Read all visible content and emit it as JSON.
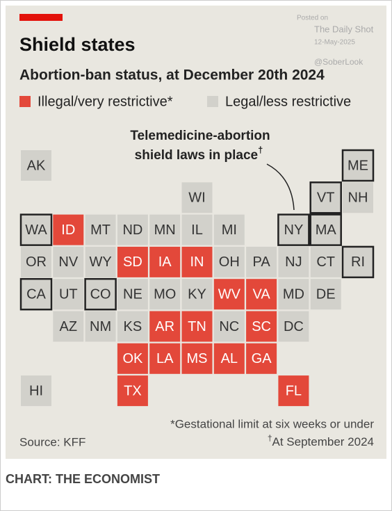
{
  "watermark": {
    "posted": "Posted on",
    "site": "The Daily Shot",
    "date": "12-May-2025",
    "handle": "@SoberLook"
  },
  "title": "Shield states",
  "subtitle": "Abortion-ban status, at December 20th 2024",
  "legend": [
    {
      "label": "Illegal/very restrictive*",
      "color": "#e3483a"
    },
    {
      "label": "Legal/less restrictive",
      "color": "#d2d1cb"
    }
  ],
  "annotation": {
    "lines": [
      "Telemedicine-abortion",
      "shield laws in place"
    ],
    "mark": "†"
  },
  "tiles": [
    "AK",
    "ME",
    "WI",
    "VT",
    "NH",
    "WA",
    "ID",
    "MT",
    "ND",
    "MN",
    "IL",
    "MI",
    "NY",
    "MA",
    "OR",
    "NV",
    "WY",
    "SD",
    "IA",
    "IN",
    "OH",
    "PA",
    "NJ",
    "CT",
    "RI",
    "CA",
    "UT",
    "CO",
    "NE",
    "MO",
    "KY",
    "WV",
    "VA",
    "MD",
    "DE",
    "AZ",
    "NM",
    "KS",
    "AR",
    "TN",
    "NC",
    "SC",
    "DC",
    "OK",
    "LA",
    "MS",
    "AL",
    "GA",
    "HI",
    "TX",
    "FL"
  ],
  "footnotes": [
    {
      "text": "*Gestational limit at six weeks or under"
    },
    {
      "mark": "†",
      "text": "At September 2024"
    }
  ],
  "source": "Source: KFF",
  "credit": "CHART: THE ECONOMIST"
}
